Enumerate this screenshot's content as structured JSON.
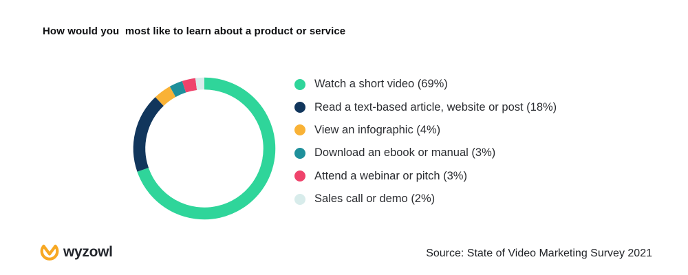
{
  "title": "How would you  most like to learn about a product or service",
  "chart_data": {
    "type": "pie",
    "subtype": "donut",
    "title": "How would you  most like to learn about a product or service",
    "categories": [
      "Watch a short video",
      "Read a text-based article, website or post",
      "View an infographic",
      "Download an ebook or manual",
      "Attend a webinar or pitch",
      "Sales call or demo"
    ],
    "values": [
      69,
      18,
      4,
      3,
      3,
      2
    ],
    "unit": "%",
    "colors": [
      "#2fd59a",
      "#11365c",
      "#f9b236",
      "#1f909b",
      "#ef436b",
      "#d8eceb"
    ],
    "start_angle_deg": 0,
    "direction": "clockwise",
    "legend_position": "right",
    "ring_thickness_px": 17.5
  },
  "legend": {
    "items": [
      {
        "label": "Watch a short video (69%)",
        "color": "#2fd59a"
      },
      {
        "label": "Read a text-based article, website or post (18%)",
        "color": "#11365c"
      },
      {
        "label": "View an infographic (4%)",
        "color": "#f9b236"
      },
      {
        "label": "Download an ebook or manual (3%)",
        "color": "#1f909b"
      },
      {
        "label": "Attend a webinar or pitch (3%)",
        "color": "#ef436b"
      },
      {
        "label": "Sales call or demo (2%)",
        "color": "#d8eceb"
      }
    ]
  },
  "footer": {
    "logo_text": "wyzowl",
    "logo_color": "#f7a823",
    "source": "Source: State of Video Marketing Survey 2021"
  }
}
